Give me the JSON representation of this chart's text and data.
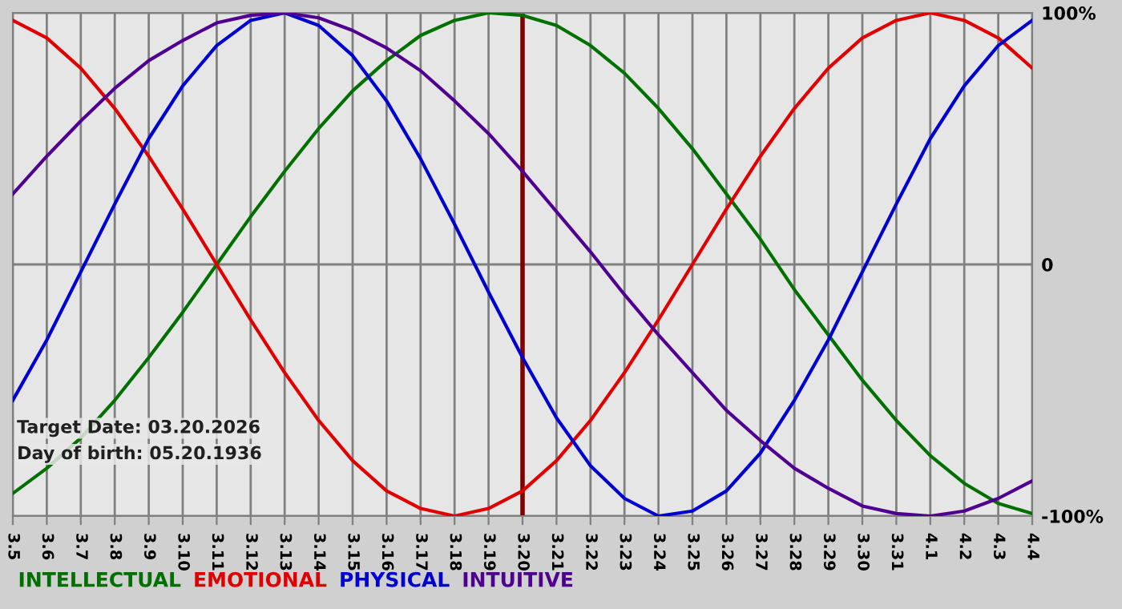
{
  "chart_data": {
    "type": "line",
    "categories": [
      "3.5",
      "3.6",
      "3.7",
      "3.8",
      "3.9",
      "3.10",
      "3.11",
      "3.12",
      "3.13",
      "3.14",
      "3.15",
      "3.16",
      "3.17",
      "3.18",
      "3.19",
      "3.20",
      "3.21",
      "3.22",
      "3.23",
      "3.24",
      "3.25",
      "3.26",
      "3.27",
      "3.28",
      "3.29",
      "3.30",
      "3.31",
      "4.1",
      "4.2",
      "4.3",
      "4.4"
    ],
    "series": [
      {
        "name": "INTELLECTUAL",
        "color": "#007000",
        "values": [
          -91,
          -81,
          -69,
          -54,
          -37,
          -19,
          0,
          19,
          37,
          54,
          69,
          81,
          91,
          97,
          100,
          99,
          95,
          87,
          76,
          62,
          46,
          28,
          10,
          -10,
          -28,
          -46,
          -62,
          -76,
          -87,
          -95,
          -99
        ]
      },
      {
        "name": "EMOTIONAL",
        "color": "#e00000",
        "values": [
          97,
          90,
          78,
          62,
          43,
          22,
          0,
          -22,
          -43,
          -62,
          -78,
          -90,
          -97,
          -100,
          -97,
          -90,
          -78,
          -62,
          -43,
          -22,
          0,
          22,
          43,
          62,
          78,
          90,
          97,
          100,
          97,
          90,
          78
        ]
      },
      {
        "name": "PHYSICAL",
        "color": "#0000d0",
        "values": [
          -54,
          -30,
          -3,
          24,
          50,
          71,
          87,
          97,
          100,
          95,
          83,
          65,
          42,
          16,
          -11,
          -37,
          -61,
          -80,
          -93,
          -100,
          -98,
          -90,
          -75,
          -54,
          -30,
          -3,
          24,
          50,
          71,
          87,
          97
        ]
      },
      {
        "name": "INTUITIVE",
        "color": "#500090",
        "values": [
          28,
          43,
          57,
          70,
          81,
          89,
          96,
          99,
          100,
          98,
          93,
          86,
          77,
          65,
          52,
          37,
          21,
          5,
          -12,
          -28,
          -43,
          -58,
          -70,
          -81,
          -89,
          -96,
          -99,
          -100,
          -98,
          -93,
          -86
        ]
      }
    ],
    "ylim": [
      -100,
      100
    ],
    "yticks": [
      {
        "value": -100,
        "label": "-100%"
      },
      0,
      {
        "value": 100,
        "label": "100%"
      }
    ],
    "ref_lines": [
      {
        "axis": "x",
        "value": "3.20",
        "color": "#800000"
      }
    ],
    "annotations": [
      "Target Date: 03.20.2026",
      "Day of birth: 05.20.1936"
    ],
    "grid": true,
    "legend": "bottom",
    "marker": "none",
    "line_style": "solid"
  }
}
